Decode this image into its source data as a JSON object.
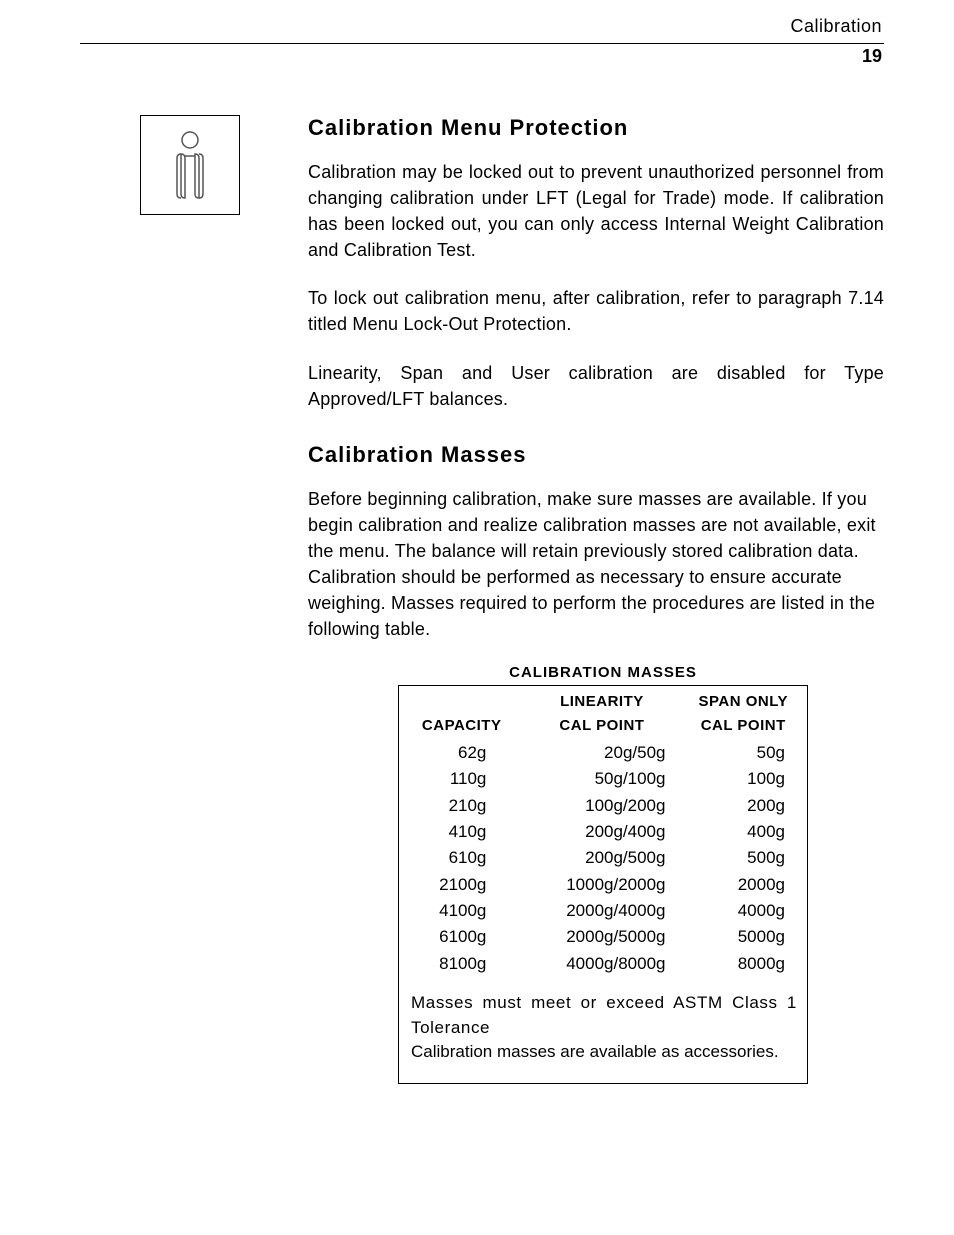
{
  "header": {
    "section": "Calibration",
    "page_number": "19"
  },
  "section1": {
    "title": "Calibration Menu Protection",
    "para1": "Calibration may be locked out to prevent unauthorized personnel from changing calibration under LFT (Legal for Trade) mode. If calibration has been locked out, you can only access Internal Weight Calibration and Calibration Test.",
    "para2": "To lock out calibration menu, after calibration, refer to paragraph 7.14 titled Menu Lock-Out Protection.",
    "para3": "Linearity, Span and User calibration are disabled for Type Approved/LFT balances."
  },
  "section2": {
    "title": "Calibration Masses",
    "para1": "Before beginning calibration, make sure masses are available. If you begin calibration and realize calibration masses are not available, exit the menu. The balance will retain previously stored calibration data. Calibration should be performed as necessary to ensure accurate weighing. Masses required to perform the procedures are listed in the following table."
  },
  "table": {
    "title": "CALIBRATION MASSES",
    "header_row1": {
      "col1": "",
      "col2": "LINEARITY",
      "col3": "SPAN ONLY"
    },
    "header_row2": {
      "col1": "CAPACITY",
      "col2": "CAL POINT",
      "col3": "CAL POINT"
    },
    "rows": [
      {
        "capacity": "62g",
        "linearity": "20g/50g",
        "span": "50g"
      },
      {
        "capacity": "110g",
        "linearity": "50g/100g",
        "span": "100g"
      },
      {
        "capacity": "210g",
        "linearity": "100g/200g",
        "span": "200g"
      },
      {
        "capacity": "410g",
        "linearity": "200g/400g",
        "span": "400g"
      },
      {
        "capacity": "610g",
        "linearity": "200g/500g",
        "span": "500g"
      },
      {
        "capacity": "2100g",
        "linearity": "1000g/2000g",
        "span": "2000g"
      },
      {
        "capacity": "4100g",
        "linearity": "2000g/4000g",
        "span": "4000g"
      },
      {
        "capacity": "6100g",
        "linearity": "2000g/5000g",
        "span": "5000g"
      },
      {
        "capacity": "8100g",
        "linearity": "4000g/8000g",
        "span": "8000g"
      }
    ],
    "footnote_line1": "Masses must meet or exceed ASTM Class 1 Tolerance",
    "footnote_line2": "Calibration masses are available as accessories."
  }
}
